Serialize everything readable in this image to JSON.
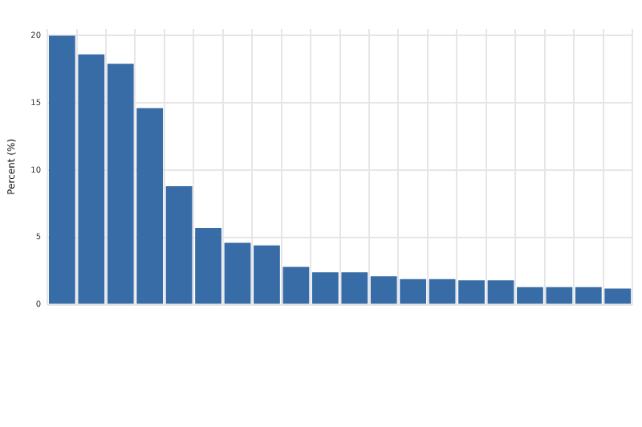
{
  "chart_data": {
    "type": "bar",
    "ylabel": "Percent (%)",
    "categories": [
      null,
      null,
      null,
      null,
      null,
      null,
      null,
      null,
      null,
      null,
      null,
      null,
      null,
      null,
      null,
      null,
      null,
      null,
      null,
      null
    ],
    "values": [
      20.0,
      18.6,
      17.9,
      14.6,
      8.8,
      5.7,
      4.6,
      4.4,
      2.8,
      2.4,
      2.4,
      2.1,
      1.9,
      1.9,
      1.8,
      1.8,
      1.3,
      1.3,
      1.3,
      1.2
    ],
    "color": "#386ca6",
    "ylim": [
      0,
      20.5
    ],
    "yticks": [
      0,
      5,
      10,
      15,
      20
    ],
    "grid": true,
    "legend": false
  }
}
